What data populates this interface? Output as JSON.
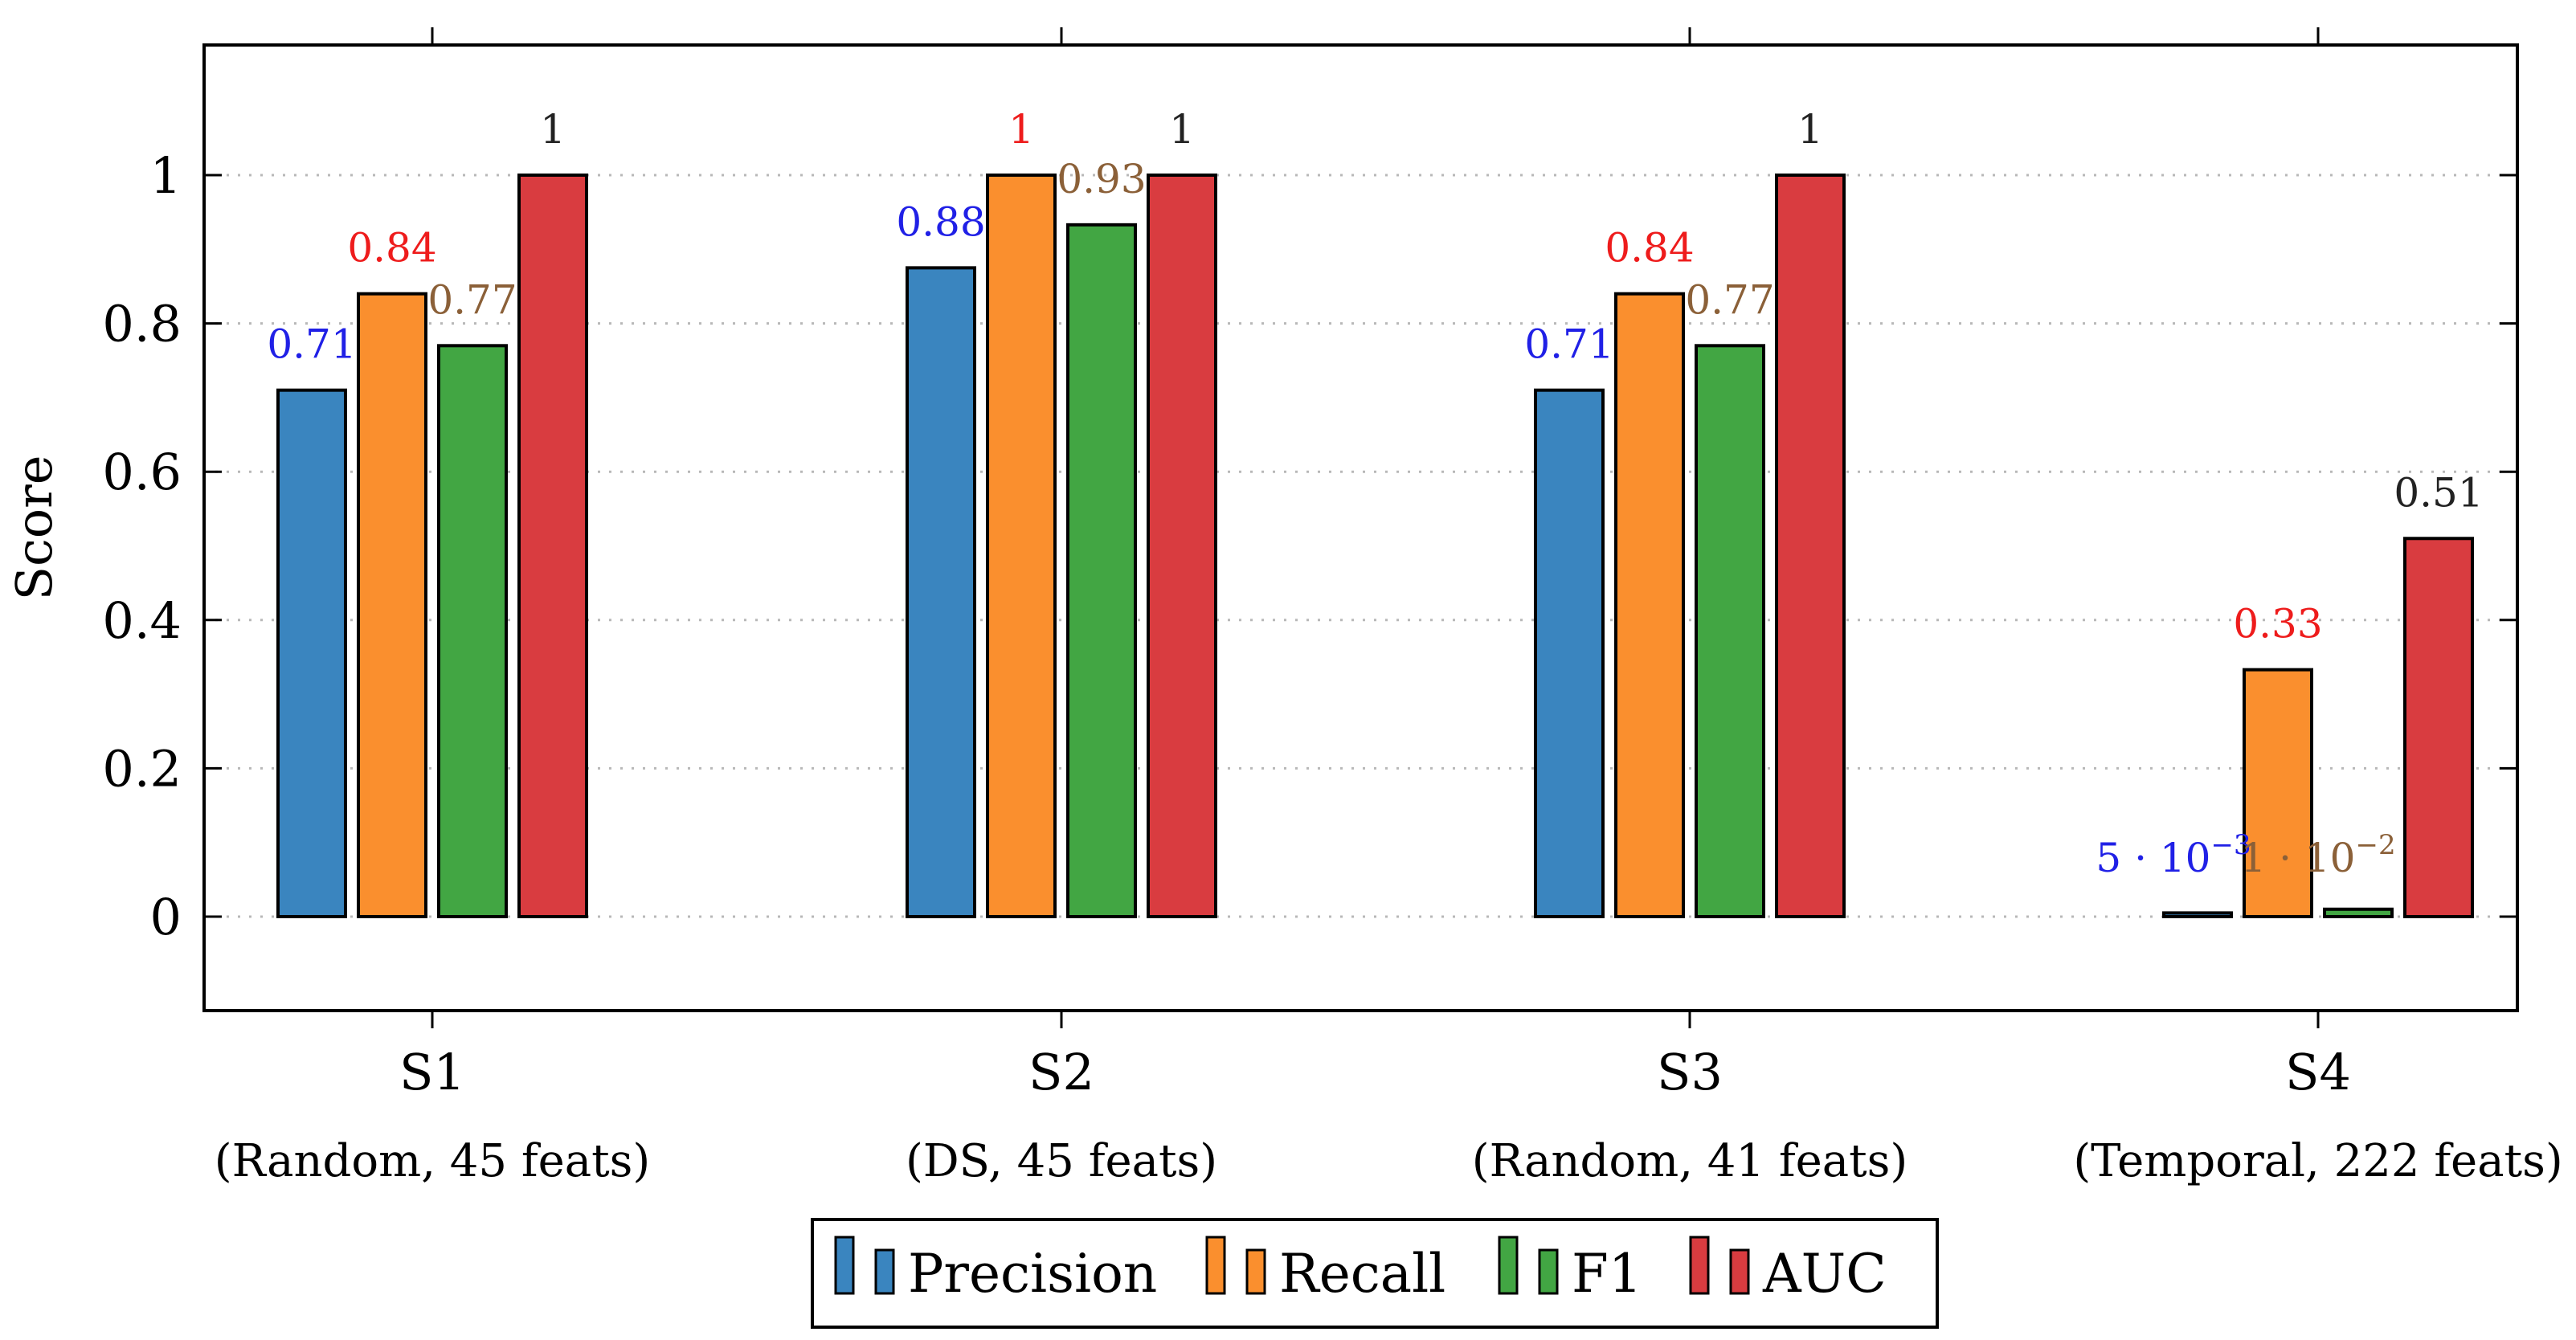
{
  "chart_data": {
    "type": "bar",
    "ylabel": "Score",
    "ylim": [
      -0.12,
      1.16
    ],
    "yticks": [
      0,
      0.2,
      0.4,
      0.6,
      0.8,
      1
    ],
    "ytick_labels": [
      "0",
      "0.2",
      "0.4",
      "0.6",
      "0.8",
      "1"
    ],
    "grid": true,
    "categories": [
      {
        "name": "S1",
        "subtitle": "(Random, 45 feats)"
      },
      {
        "name": "S2",
        "subtitle": "(DS, 45 feats)"
      },
      {
        "name": "S3",
        "subtitle": "(Random, 41 feats)"
      },
      {
        "name": "S4",
        "subtitle": "(Temporal, 222 feats)"
      }
    ],
    "series": [
      {
        "name": "Precision",
        "color": "#3a85bf",
        "label_color": "#2020e6",
        "values": [
          0.71,
          0.875,
          0.71,
          0.005
        ],
        "labels": [
          "0.71",
          "0.88",
          "0.71",
          "5 · 10"
        ],
        "label_exps": [
          null,
          null,
          null,
          "−3"
        ]
      },
      {
        "name": "Recall",
        "color": "#fa8f2e",
        "label_color": "#ee1c1c",
        "values": [
          0.84,
          1.0,
          0.84,
          0.333
        ],
        "labels": [
          "0.84",
          "1",
          "0.84",
          "0.33"
        ],
        "label_exps": [
          null,
          null,
          null,
          null
        ]
      },
      {
        "name": "F1",
        "color": "#42a643",
        "label_color": "#8b6038",
        "values": [
          0.77,
          0.933,
          0.77,
          0.01
        ],
        "labels": [
          "0.77",
          "0.93",
          "0.77",
          "1 · 10"
        ],
        "label_exps": [
          null,
          null,
          null,
          "−2"
        ]
      },
      {
        "name": "AUC",
        "color": "#d93c40",
        "label_color": "#222222",
        "values": [
          1.0,
          1.0,
          1.0,
          0.51
        ],
        "labels": [
          "1",
          "1",
          "1",
          "0.51"
        ],
        "label_exps": [
          null,
          null,
          null,
          null
        ]
      }
    ],
    "legend": {
      "position": "bottom-center",
      "entries": [
        "Precision",
        "Recall",
        "F1",
        "AUC"
      ]
    }
  }
}
